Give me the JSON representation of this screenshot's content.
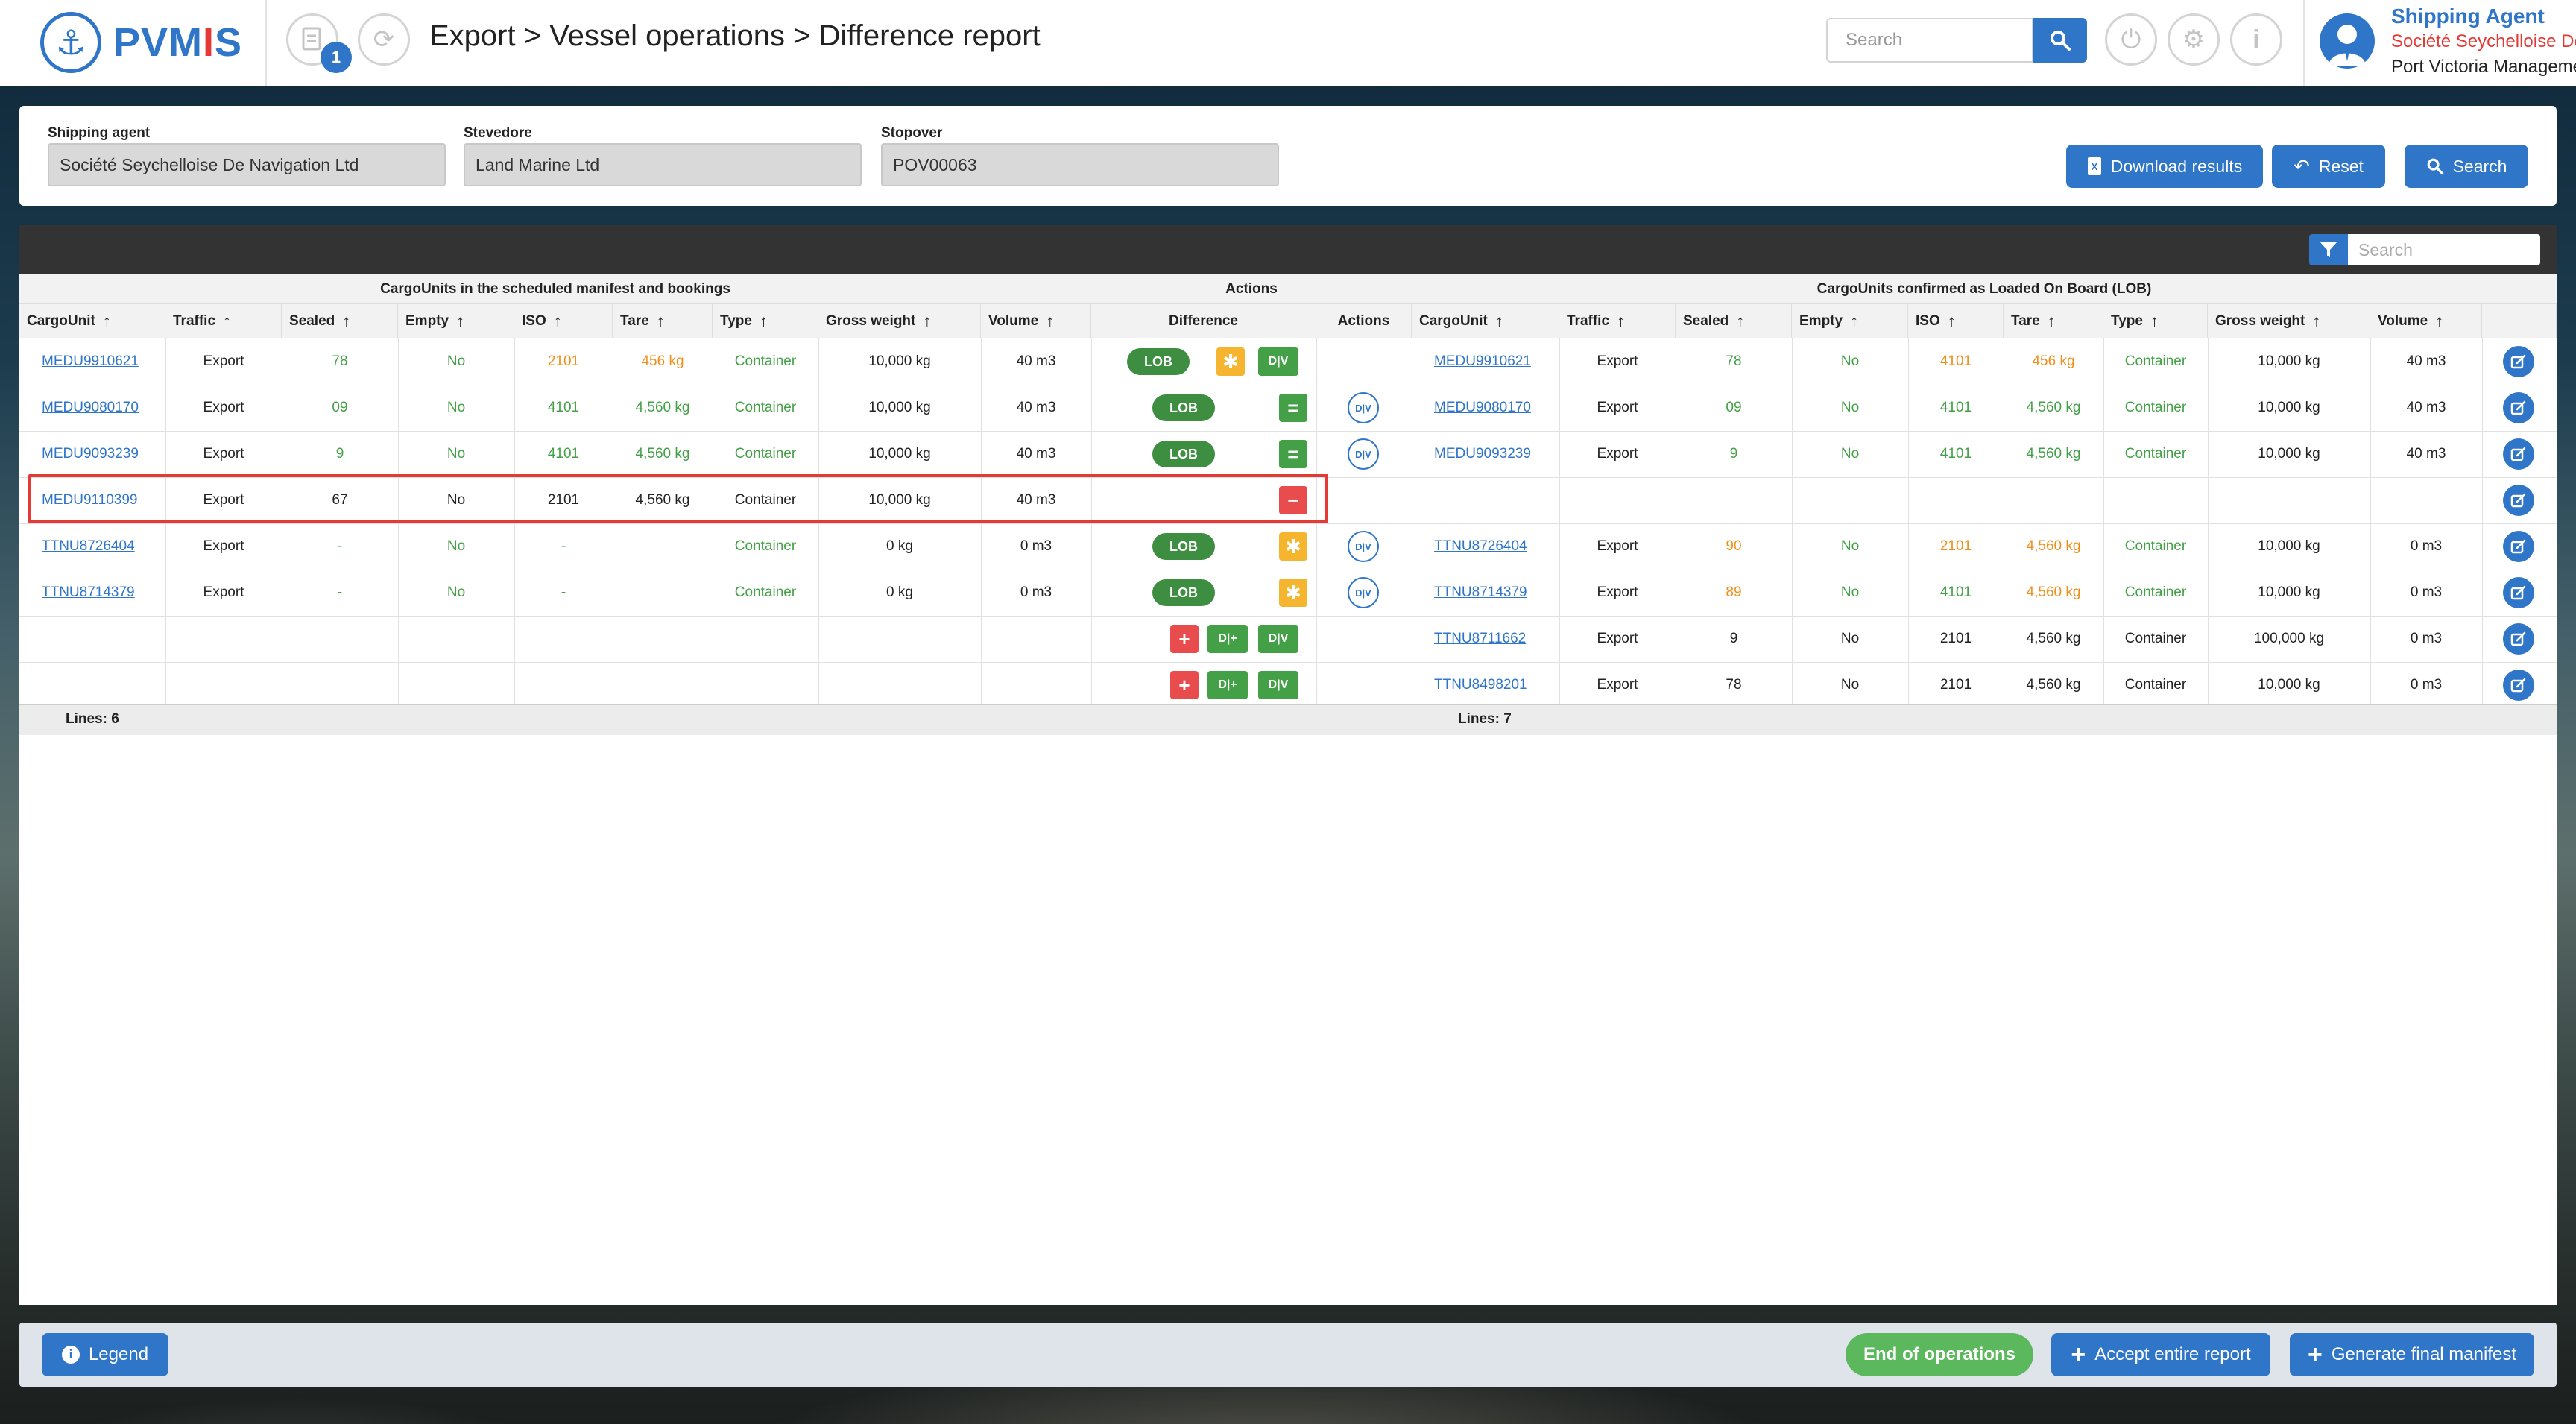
{
  "app": {
    "brand_prefix": "PVM",
    "brand_bar": "I",
    "brand_suffix": "S"
  },
  "header": {
    "breadcrumb": "Export > Vessel operations > Difference report",
    "notification_count": "1",
    "search_placeholder": "Search",
    "user_role": "Shipping Agent",
    "user_org": "Société Seychelloise De Navigation Ltd",
    "user_port": "Port Victoria Management"
  },
  "filters": {
    "shipping_agent_label": "Shipping agent",
    "shipping_agent_value": "Société Seychelloise De Navigation Ltd",
    "stevedore_label": "Stevedore",
    "stevedore_value": "Land Marine Ltd",
    "stopover_label": "Stopover",
    "stopover_value": "POV00063",
    "download_label": "Download results",
    "reset_label": "Reset",
    "search_label": "Search"
  },
  "table": {
    "search_placeholder": "Search",
    "left_group": "CargoUnits in the scheduled manifest and bookings",
    "actions_group": "Actions",
    "right_group": "CargoUnits confirmed as Loaded On Board (LOB)",
    "columns_left": [
      "CargoUnit",
      "Traffic",
      "Sealed",
      "Empty",
      "ISO",
      "Tare",
      "Type",
      "Gross weight",
      "Volume"
    ],
    "columns_actions": [
      "Difference",
      "Actions"
    ],
    "columns_right": [
      "CargoUnit",
      "Traffic",
      "Sealed",
      "Empty",
      "ISO",
      "Tare",
      "Type",
      "Gross weight",
      "Volume"
    ],
    "lob_label": "LOB",
    "equal_symbol": "=",
    "star_symbol": "✱",
    "plus_symbol": "+",
    "minus_symbol": "−",
    "dv_label": "D|V",
    "dplus_label": "D|+",
    "rows": [
      {
        "left": [
          "MEDU9910621",
          "Export",
          "78",
          "No",
          "2101",
          "456 kg",
          "Container",
          "10,000 kg",
          "40 m3"
        ],
        "right": [
          "MEDU9910621",
          "Export",
          "78",
          "No",
          "4101",
          "456 kg",
          "Container",
          "10,000 kg",
          "40 m3"
        ]
      },
      {
        "left": [
          "MEDU9080170",
          "Export",
          "09",
          "No",
          "4101",
          "4,560 kg",
          "Container",
          "10,000 kg",
          "40 m3"
        ],
        "right": [
          "MEDU9080170",
          "Export",
          "09",
          "No",
          "4101",
          "4,560 kg",
          "Container",
          "10,000 kg",
          "40 m3"
        ]
      },
      {
        "left": [
          "MEDU9093239",
          "Export",
          "9",
          "No",
          "4101",
          "4,560 kg",
          "Container",
          "10,000 kg",
          "40 m3"
        ],
        "right": [
          "MEDU9093239",
          "Export",
          "9",
          "No",
          "4101",
          "4,560 kg",
          "Container",
          "10,000 kg",
          "40 m3"
        ]
      },
      {
        "left": [
          "MEDU9110399",
          "Export",
          "67",
          "No",
          "2101",
          "4,560 kg",
          "Container",
          "10,000 kg",
          "40 m3"
        ],
        "right": [
          "",
          "",
          "",
          "",
          "",
          "",
          "",
          "",
          ""
        ]
      },
      {
        "left": [
          "TTNU8726404",
          "Export",
          "-",
          "No",
          "-",
          "",
          "Container",
          "0 kg",
          "0 m3"
        ],
        "right": [
          "TTNU8726404",
          "Export",
          "90",
          "No",
          "2101",
          "4,560 kg",
          "Container",
          "10,000 kg",
          "0 m3"
        ]
      },
      {
        "left": [
          "TTNU8714379",
          "Export",
          "-",
          "No",
          "-",
          "",
          "Container",
          "0 kg",
          "0 m3"
        ],
        "right": [
          "TTNU8714379",
          "Export",
          "89",
          "No",
          "4101",
          "4,560 kg",
          "Container",
          "10,000 kg",
          "0 m3"
        ]
      },
      {
        "left": [
          "",
          "",
          "",
          "",
          "",
          "",
          "",
          "",
          ""
        ],
        "right": [
          "TTNU8711662",
          "Export",
          "9",
          "No",
          "2101",
          "4,560 kg",
          "Container",
          "100,000 kg",
          "0 m3"
        ]
      },
      {
        "left": [
          "",
          "",
          "",
          "",
          "",
          "",
          "",
          "",
          ""
        ],
        "right": [
          "TTNU8498201",
          "Export",
          "78",
          "No",
          "2101",
          "4,560 kg",
          "Container",
          "10,000 kg",
          "0 m3"
        ]
      }
    ],
    "lines_left": "Lines: 6",
    "lines_right": "Lines: 7"
  },
  "bottom": {
    "legend_label": "Legend",
    "end_label": "End of operations",
    "accept_label": "Accept entire report",
    "generate_label": "Generate final manifest"
  },
  "colors": {
    "primary": "#2f75c8",
    "success": "#43a047",
    "warning": "#f5b52e",
    "danger": "#e84c4c",
    "changed": "#ef8f1a"
  }
}
